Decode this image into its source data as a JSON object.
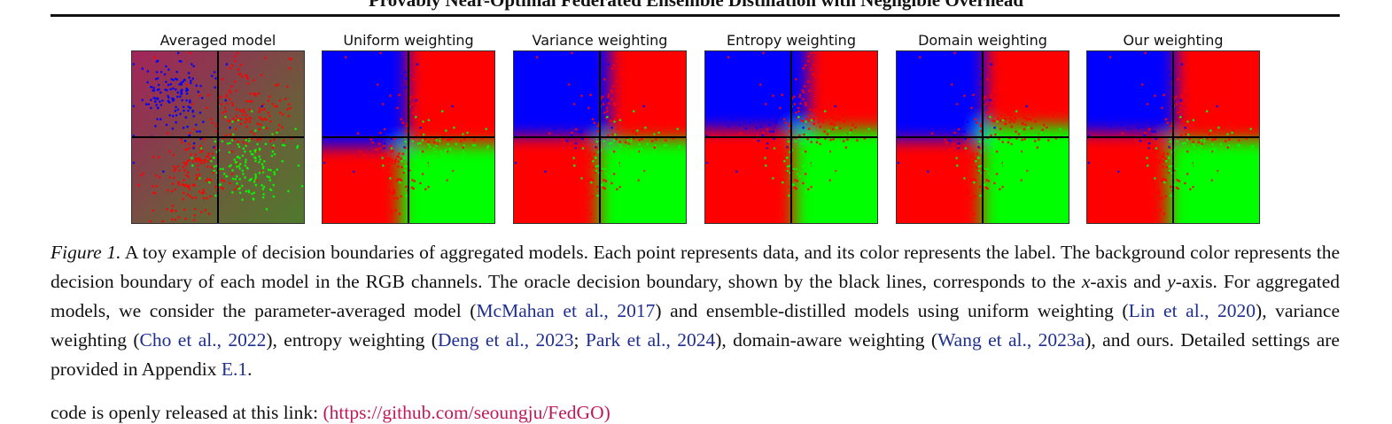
{
  "header": {
    "running_title": "Provably Near-Optimal Federated Ensemble Distillation with Negligible Overhead"
  },
  "figure": {
    "panels": [
      {
        "title": "Averaged model",
        "style": "averaged"
      },
      {
        "title": "Uniform weighting",
        "style": "uniform"
      },
      {
        "title": "Variance weighting",
        "style": "variance"
      },
      {
        "title": "Entropy weighting",
        "style": "entropy"
      },
      {
        "title": "Domain weighting",
        "style": "domain"
      },
      {
        "title": "Our weighting",
        "style": "ours"
      }
    ],
    "colors": {
      "blue": "#0000ff",
      "red": "#ff0000",
      "green": "#00ff00",
      "oracle_line": "#000000"
    }
  },
  "caption": {
    "label": "Figure 1.",
    "t1": " A toy example of decision boundaries of aggregated models. Each point represents data, and its color represents the label. The background color represents the decision boundary of each model in the RGB channels. The oracle decision boundary, shown by the black lines, corresponds to the ",
    "x_var": "x",
    "t2": "-axis and ",
    "y_var": "y",
    "t3": "-axis. For aggregated models, we consider the parameter-averaged model (",
    "c1": "McMahan et al., 2017",
    "t4": ") and ensemble-distilled models using uniform weighting (",
    "c2": "Lin et al., 2020",
    "t5": "), variance weighting (",
    "c3": "Cho et al., 2022",
    "t6": "), entropy weighting (",
    "c4": "Deng et al., 2023",
    "t7": "; ",
    "c5": "Park et al., 2024",
    "t8": "), domain-aware weighting (",
    "c6": "Wang et al., 2023a",
    "t9": "), and ours. Detailed settings are provided in Appendix ",
    "c7": "E.1",
    "t10": "."
  },
  "trailing": {
    "text": "code is openly released at this link: ",
    "link": "(https://github.com/seoungju/FedGO)"
  }
}
